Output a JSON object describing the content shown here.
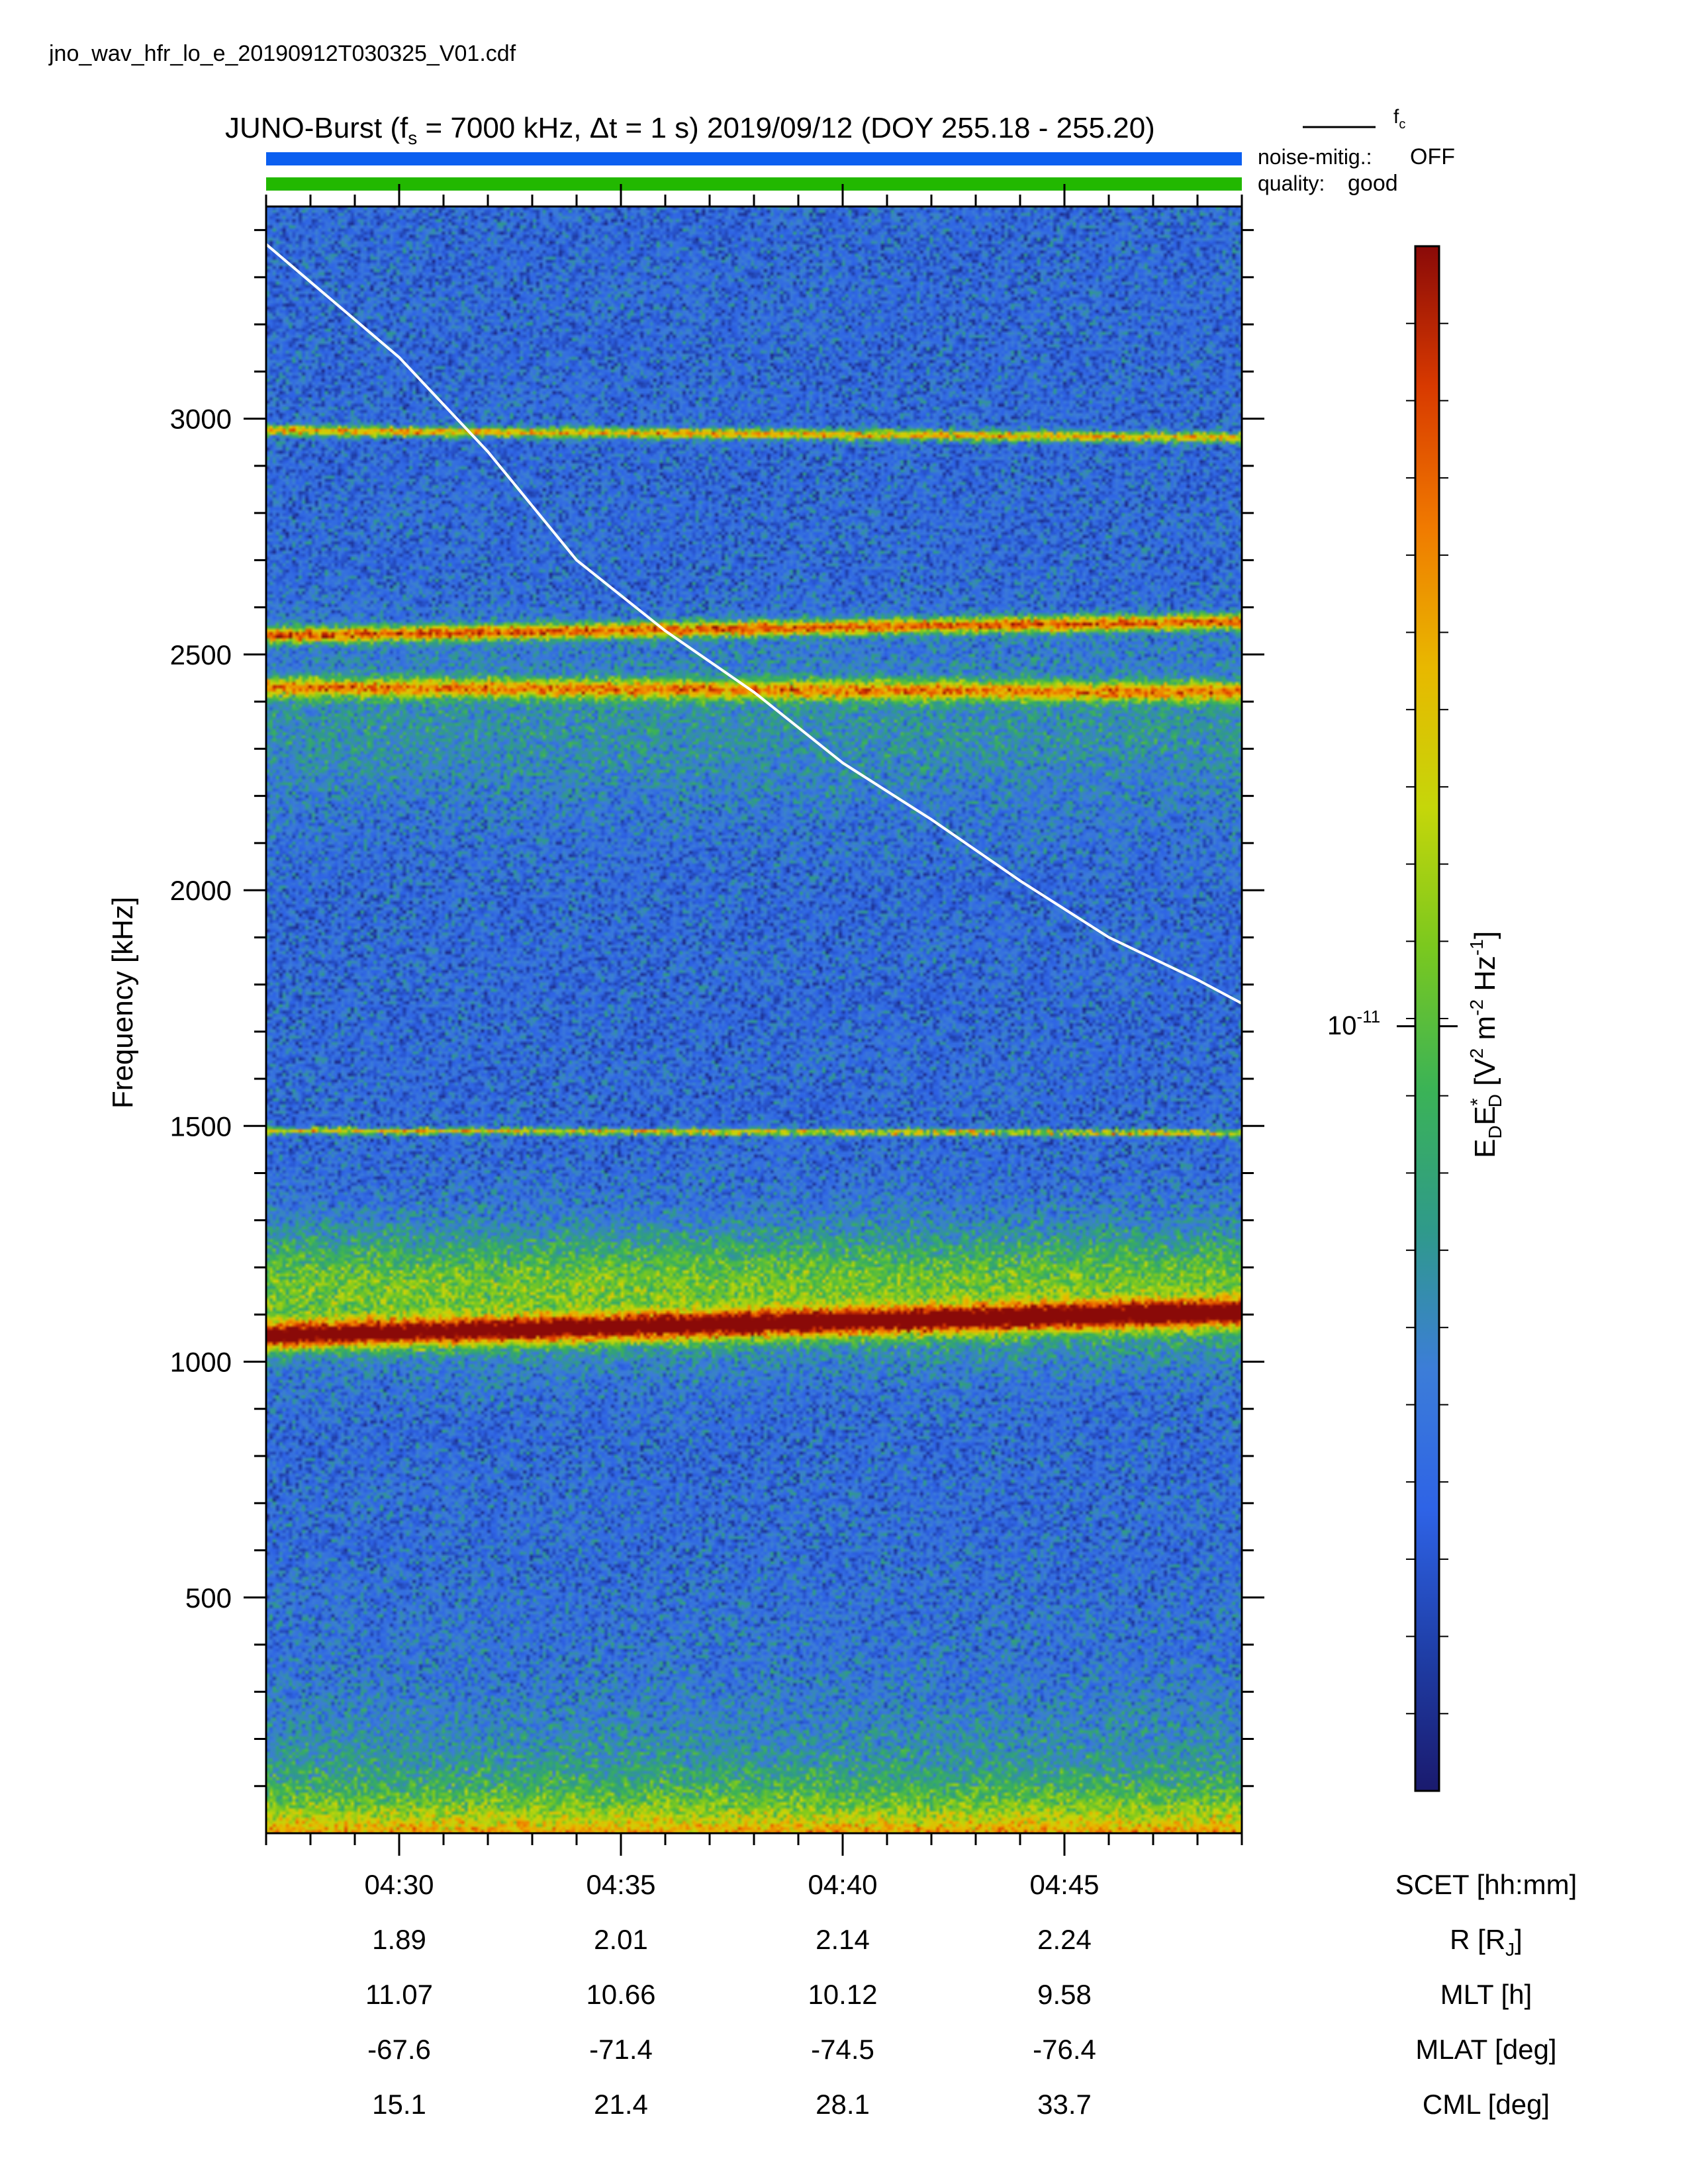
{
  "filename": "jno_wav_hfr_lo_e_20190912T030325_V01.cdf",
  "chart_data": {
    "type": "heatmap",
    "title": {
      "prefix": "JUNO-Burst (f",
      "fs_sub": "s",
      "fs_value": " = 7000 kHz, Δt = 1 s)  2019/09/12 (DOY 255.18 - 255.20)"
    },
    "legend": {
      "line_label": "f",
      "line_label_sub": "c",
      "line_color": "#ffffff"
    },
    "status_bars": {
      "noise_label": "noise-mitig.:",
      "noise_value": "OFF",
      "noise_color": "#0b5ff0",
      "quality_label": "quality:",
      "quality_value": "good",
      "quality_color": "#22b800"
    },
    "yaxis": {
      "label": "Frequency [kHz]",
      "range": [
        0,
        3450
      ],
      "ticks": [
        500,
        1000,
        1500,
        2000,
        2500,
        3000
      ],
      "tick_labels": [
        "500",
        "1000",
        "1500",
        "2000",
        "2500",
        "3000"
      ]
    },
    "xaxis": {
      "range_minutes": [
        267.0,
        289.0
      ],
      "ticks": [
        270,
        275,
        280,
        285
      ],
      "rows": [
        {
          "label": "SCET [hh:mm]",
          "values": [
            "04:30",
            "04:35",
            "04:40",
            "04:45"
          ]
        },
        {
          "label": "R [R",
          "label_sub": "J",
          "label_end": "]",
          "values": [
            "1.89",
            "2.01",
            "2.14",
            "2.24"
          ]
        },
        {
          "label": "MLT [h]",
          "values": [
            "11.07",
            "10.66",
            "10.12",
            "9.58"
          ]
        },
        {
          "label": "MLAT [deg]",
          "values": [
            "-67.6",
            "-71.4",
            "-74.5",
            "-76.4"
          ]
        },
        {
          "label": "CML [deg]",
          "values": [
            "15.1",
            "21.4",
            "28.1",
            "33.7"
          ]
        }
      ]
    },
    "colorbar": {
      "label_main": "E",
      "label_sub1": "D",
      "label_mid": "E",
      "label_star": "*",
      "label_sub2": "D",
      "label_units_a": "  [V",
      "label_units_sup1": "2",
      "label_units_b": " m",
      "label_units_sup2": "-2",
      "label_units_c": " Hz",
      "label_units_sup3": "-1",
      "label_units_d": "]",
      "tick_base": "10",
      "tick_exp": "-11",
      "tick_position_fraction": 0.495,
      "colors": [
        "#1a1a6e",
        "#1f3fa8",
        "#2e63e6",
        "#3c7dd8",
        "#2f9a8a",
        "#3bb356",
        "#7ac81f",
        "#c5d60a",
        "#e8b800",
        "#f07a00",
        "#d83a00",
        "#8a0a08"
      ]
    },
    "bands": [
      {
        "name": "emission-1000",
        "f_start": 1055,
        "f_end": 1105,
        "intensity": 1.0,
        "width": 28
      },
      {
        "name": "emission-1500",
        "f_start": 1490,
        "f_end": 1485,
        "intensity": 0.7,
        "width": 6
      },
      {
        "name": "emission-2550",
        "f_start": 2540,
        "f_end": 2570,
        "intensity": 0.85,
        "width": 16
      },
      {
        "name": "emission-2420",
        "f_start": 2430,
        "f_end": 2420,
        "intensity": 0.7,
        "width": 20
      },
      {
        "name": "emission-2970",
        "f_start": 2975,
        "f_end": 2960,
        "intensity": 0.75,
        "width": 10
      }
    ],
    "fc_curve": {
      "x_minutes": [
        267.0,
        270.0,
        272.0,
        274.0,
        276.0,
        278.0,
        280.0,
        282.0,
        284.0,
        286.0,
        288.0,
        289.0
      ],
      "y_khz": [
        3370,
        3130,
        2930,
        2700,
        2550,
        2420,
        2270,
        2150,
        2020,
        1900,
        1810,
        1760
      ]
    }
  }
}
